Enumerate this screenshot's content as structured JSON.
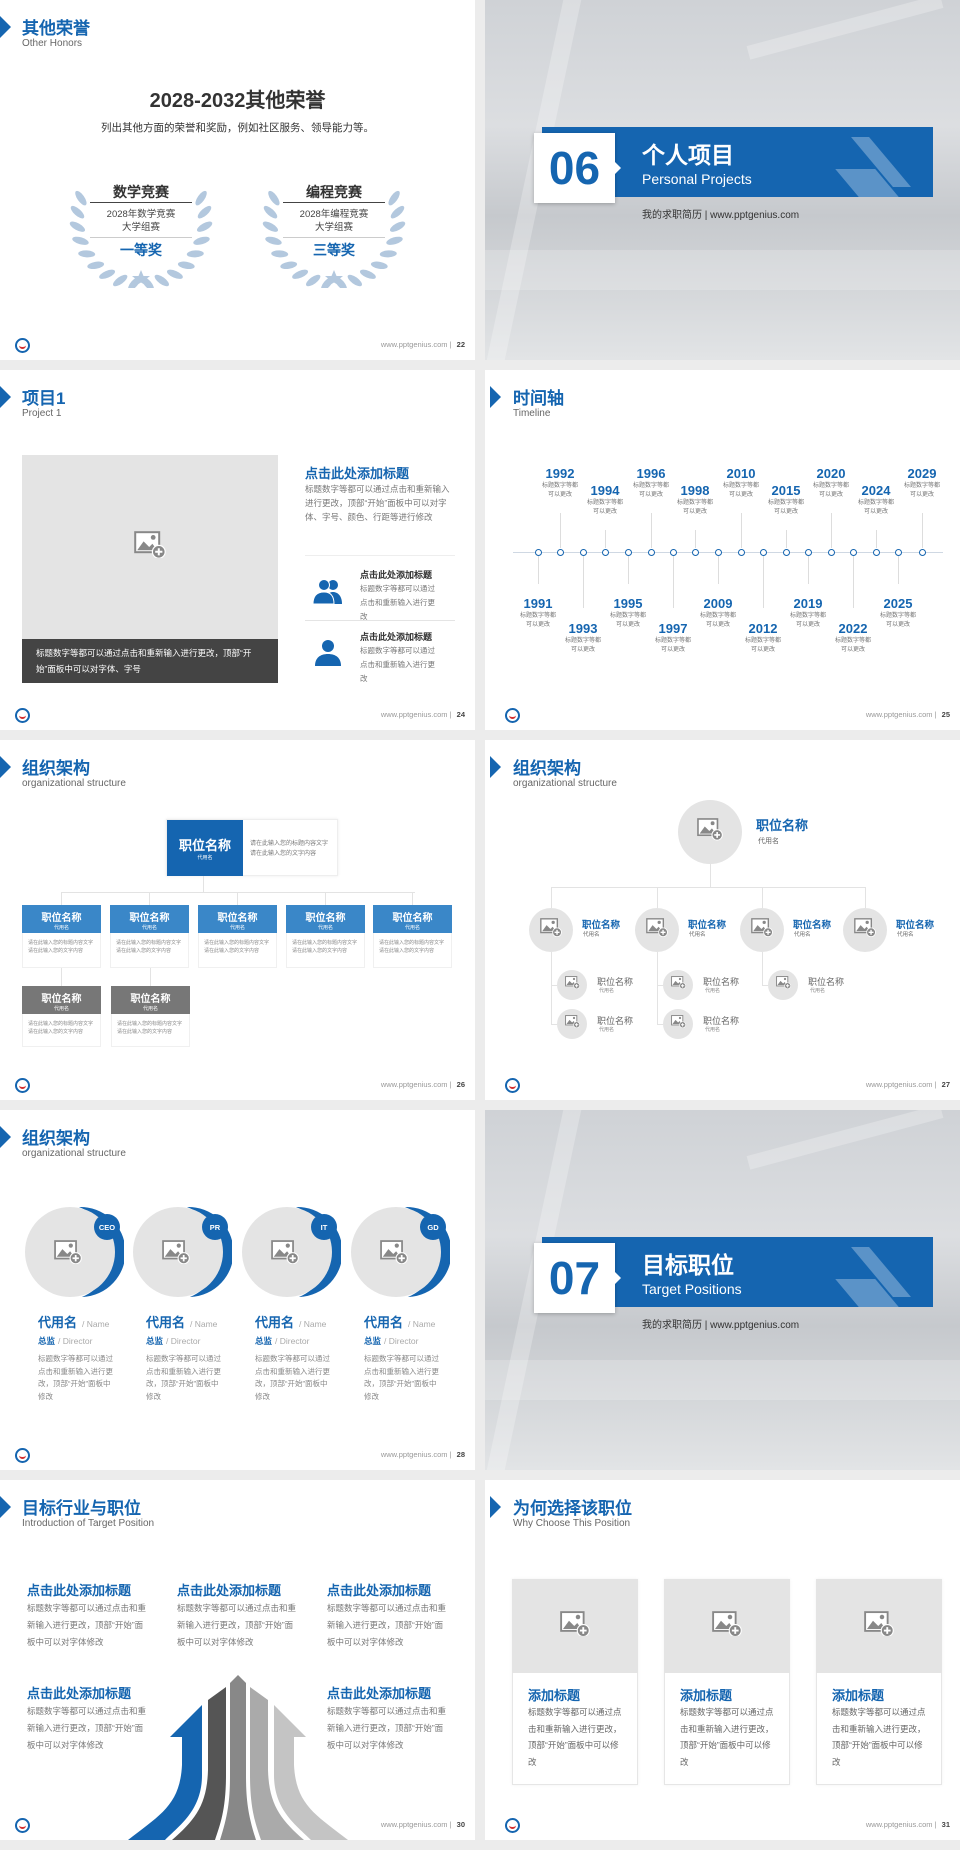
{
  "footer_url": "www.pptgenius.com",
  "colors": {
    "accent": "#1565b0",
    "light_blue": "#3a87c8",
    "gray_box": "#777777",
    "placeholder": "#e4e4e4",
    "caption_bar": "#444444",
    "laurel": "#b3c8de"
  },
  "slides": {
    "honors": {
      "title": "其他荣誉",
      "subtitle": "Other Honors",
      "page": "22",
      "heading": "2028-2032其他荣誉",
      "description": "列出其他方面的荣誉和奖励，例如社区服务、领导能力等。",
      "awards": [
        {
          "name": "数学竞赛",
          "line1": "2028年数学竞赛",
          "line2": "大学组赛",
          "prize": "一等奖"
        },
        {
          "name": "编程竞赛",
          "line1": "2028年编程竞赛",
          "line2": "大学组赛",
          "prize": "三等奖"
        }
      ]
    },
    "section06": {
      "number": "06",
      "title": "个人项目",
      "subtitle": "Personal Projects",
      "tagline": "我的求职简历 | www.pptgenius.com"
    },
    "project1": {
      "title": "项目1",
      "subtitle": "Project 1",
      "page": "24",
      "caption": "标题数字等都可以通过点击和重新输入进行更改，顶部“开始”面板中可以对字体、字号",
      "main_heading": "点击此处添加标题",
      "main_text": "标题数字等都可以通过点击和重新输入进行更改，顶部“开始”面板中可以对字体、字号、颜色、行距等进行修改",
      "items": [
        {
          "icon": "users-icon",
          "heading": "点击此处添加标题",
          "text": "标题数字等都可以通过点击和重新输入进行更改"
        },
        {
          "icon": "user-icon",
          "heading": "点击此处添加标题",
          "text": "标题数字等都可以通过点击和重新输入进行更改"
        }
      ]
    },
    "timeline": {
      "title": "时间轴",
      "subtitle": "Timeline",
      "page": "25",
      "desc": [
        "标题数字等都",
        "可以更改"
      ],
      "events": [
        {
          "year": "1991",
          "side": "below",
          "tier": "near"
        },
        {
          "year": "1992",
          "side": "above",
          "tier": "far"
        },
        {
          "year": "1993",
          "side": "below",
          "tier": "far"
        },
        {
          "year": "1994",
          "side": "above",
          "tier": "near"
        },
        {
          "year": "1995",
          "side": "below",
          "tier": "near"
        },
        {
          "year": "1996",
          "side": "above",
          "tier": "far"
        },
        {
          "year": "1997",
          "side": "below",
          "tier": "far"
        },
        {
          "year": "1998",
          "side": "above",
          "tier": "near"
        },
        {
          "year": "2009",
          "side": "below",
          "tier": "near"
        },
        {
          "year": "2010",
          "side": "above",
          "tier": "far"
        },
        {
          "year": "2012",
          "side": "below",
          "tier": "far"
        },
        {
          "year": "2015",
          "side": "above",
          "tier": "near"
        },
        {
          "year": "2019",
          "side": "below",
          "tier": "near"
        },
        {
          "year": "2020",
          "side": "above",
          "tier": "far"
        },
        {
          "year": "2022",
          "side": "below",
          "tier": "far"
        },
        {
          "year": "2024",
          "side": "above",
          "tier": "near"
        },
        {
          "year": "2025",
          "side": "below",
          "tier": "near"
        },
        {
          "year": "2029",
          "side": "above",
          "tier": "far"
        }
      ]
    },
    "org1": {
      "title": "组织架构",
      "subtitle": "organizational structure",
      "page": "26",
      "top": {
        "name": "职位名称",
        "alias": "代用名",
        "text": "请在此输入您的标题内容文字请在此输入您的文字内容"
      },
      "level2": [
        {
          "name": "职位名称",
          "alias": "代用名",
          "text": "请在此输入您的标题内容文字请在此输入您的文字内容"
        },
        {
          "name": "职位名称",
          "alias": "代用名",
          "text": "请在此输入您的标题内容文字请在此输入您的文字内容"
        },
        {
          "name": "职位名称",
          "alias": "代用名",
          "text": "请在此输入您的标题内容文字请在此输入您的文字内容"
        },
        {
          "name": "职位名称",
          "alias": "代用名",
          "text": "请在此输入您的标题内容文字请在此输入您的文字内容"
        },
        {
          "name": "职位名称",
          "alias": "代用名",
          "text": "请在此输入您的标题内容文字请在此输入您的文字内容"
        }
      ],
      "level3": [
        {
          "name": "职位名称",
          "alias": "代用名",
          "text": "请在此输入您的标题内容文字请在此输入您的文字内容"
        },
        {
          "name": "职位名称",
          "alias": "代用名",
          "text": "请在此输入您的标题内容文字请在此输入您的文字内容"
        }
      ]
    },
    "org2": {
      "title": "组织架构",
      "subtitle": "organizational structure",
      "page": "27",
      "top": {
        "name": "职位名称",
        "alias": "代用名"
      },
      "level2": [
        {
          "name": "职位名称",
          "alias": "代用名",
          "children": [
            {
              "name": "职位名称",
              "alias": "代用名"
            },
            {
              "name": "职位名称",
              "alias": "代用名"
            }
          ]
        },
        {
          "name": "职位名称",
          "alias": "代用名",
          "children": [
            {
              "name": "职位名称",
              "alias": "代用名"
            },
            {
              "name": "职位名称",
              "alias": "代用名"
            }
          ]
        },
        {
          "name": "职位名称",
          "alias": "代用名",
          "children": [
            {
              "name": "职位名称",
              "alias": "代用名"
            }
          ]
        },
        {
          "name": "职位名称",
          "alias": "代用名",
          "children": []
        }
      ]
    },
    "org3": {
      "title": "组织架构",
      "subtitle": "organizational structure",
      "page": "28",
      "members": [
        {
          "badge": "CEO",
          "name": "代用名",
          "name_en": "/ Name",
          "role": "总监",
          "role_en": "/  Director",
          "text": "标题数字等都可以通过点击和重新输入进行更改，顶部“开始”面板中修改"
        },
        {
          "badge": "PR",
          "name": "代用名",
          "name_en": "/ Name",
          "role": "总监",
          "role_en": "/  Director",
          "text": "标题数字等都可以通过点击和重新输入进行更改，顶部“开始”面板中修改"
        },
        {
          "badge": "IT",
          "name": "代用名",
          "name_en": "/ Name",
          "role": "总监",
          "role_en": "/  Director",
          "text": "标题数字等都可以通过点击和重新输入进行更改，顶部“开始”面板中修改"
        },
        {
          "badge": "GD",
          "name": "代用名",
          "name_en": "/ Name",
          "role": "总监",
          "role_en": "/  Director",
          "text": "标题数字等都可以通过点击和重新输入进行更改，顶部“开始”面板中修改"
        }
      ]
    },
    "section07": {
      "number": "07",
      "title": "目标职位",
      "subtitle": "Target Positions",
      "tagline": "我的求职简历 | www.pptgenius.com"
    },
    "target": {
      "title": "目标行业与职位",
      "subtitle": "Introduction of Target Position",
      "page": "30",
      "blocks": [
        {
          "heading": "点击此处添加标题",
          "text": "标题数字等都可以通过点击和重新输入进行更改，顶部“开始”面板中可以对字体修改"
        },
        {
          "heading": "点击此处添加标题",
          "text": "标题数字等都可以通过点击和重新输入进行更改，顶部“开始”面板中可以对字体修改"
        },
        {
          "heading": "点击此处添加标题",
          "text": "标题数字等都可以通过点击和重新输入进行更改，顶部“开始”面板中可以对字体修改"
        },
        {
          "heading": "点击此处添加标题",
          "text": "标题数字等都可以通过点击和重新输入进行更改，顶部“开始”面板中可以对字体修改"
        },
        {
          "heading": "点击此处添加标题",
          "text": "标题数字等都可以通过点击和重新输入进行更改，顶部“开始”面板中可以对字体修改"
        }
      ]
    },
    "why": {
      "title": "为何选择该职位",
      "subtitle": "Why Choose This Position",
      "page": "31",
      "cards": [
        {
          "heading": "添加标题",
          "text": "标题数字等都可以通过点击和重新输入进行更改，顶部“开始”面板中可以修改"
        },
        {
          "heading": "添加标题",
          "text": "标题数字等都可以通过点击和重新输入进行更改，顶部“开始”面板中可以修改"
        },
        {
          "heading": "添加标题",
          "text": "标题数字等都可以通过点击和重新输入进行更改，顶部“开始”面板中可以修改"
        }
      ]
    }
  }
}
